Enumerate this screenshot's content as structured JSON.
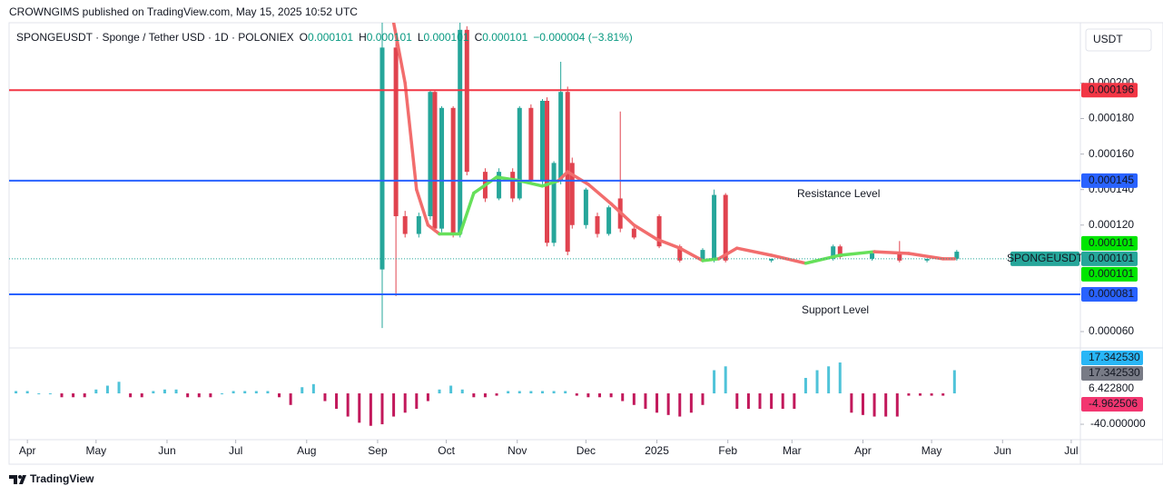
{
  "header": {
    "published": "CROWNGIMS published on TradingView.com, May 15, 2025 10:52 UTC",
    "symbol": "SPONGEUSDT · Sponge / Tether USD · 1D · POLONIEX",
    "o_label": "O",
    "open": 0.000101,
    "h_label": "H",
    "high": 0.000101,
    "l_label": "L",
    "low": 0.000101,
    "c_label": "C",
    "close": 0.000101,
    "change": "−0.000004 (−3.81%)",
    "currency": "USDT"
  },
  "x_axis": {
    "xlim": [
      -8,
      460
    ],
    "xticks": [
      {
        "value": 0,
        "label": "Apr"
      },
      {
        "value": 30,
        "label": "May"
      },
      {
        "value": 61,
        "label": "Jun"
      },
      {
        "value": 91,
        "label": "Jul"
      },
      {
        "value": 122,
        "label": "Aug"
      },
      {
        "value": 153,
        "label": "Sep"
      },
      {
        "value": 183,
        "label": "Oct"
      },
      {
        "value": 214,
        "label": "Nov"
      },
      {
        "value": 244,
        "label": "Dec"
      },
      {
        "value": 275,
        "label": "2025"
      },
      {
        "value": 306,
        "label": "Feb"
      },
      {
        "value": 334,
        "label": "Mar"
      },
      {
        "value": 365,
        "label": "Apr"
      },
      {
        "value": 395,
        "label": "May"
      },
      {
        "value": 426,
        "label": "Jun"
      },
      {
        "value": 456,
        "label": "Jul"
      }
    ]
  },
  "price_pane": {
    "ylim": [
      5.13e-05,
      0.000234
    ],
    "yticks": [
      {
        "value": 0.0002,
        "label": "0.000200"
      },
      {
        "value": 0.00018,
        "label": "0.000180"
      },
      {
        "value": 0.00016,
        "label": "0.000160"
      },
      {
        "value": 0.00014,
        "label": "0.000140"
      },
      {
        "value": 0.00012,
        "label": "0.000120"
      },
      {
        "value": 6e-05,
        "label": "0.000060"
      }
    ],
    "up_color": "#26a69a",
    "down_color": "#e0434f",
    "candles": [
      {
        "x": 155,
        "open": 9.5e-05,
        "high": 0.00024,
        "low": 6.2e-05,
        "close": 0.00022
      },
      {
        "x": 161,
        "open": 0.00022,
        "high": 0.00023,
        "low": 8e-05,
        "close": 0.000125
      },
      {
        "x": 165,
        "open": 0.000125,
        "high": 0.000128,
        "low": 0.000113,
        "close": 0.000115
      },
      {
        "x": 171,
        "open": 0.000115,
        "high": 0.000127,
        "low": 0.000113,
        "close": 0.000125
      },
      {
        "x": 176,
        "open": 0.000125,
        "high": 0.000196,
        "low": 0.000123,
        "close": 0.000195
      },
      {
        "x": 178,
        "open": 0.000195,
        "high": 0.000196,
        "low": 0.000116,
        "close": 0.000118
      },
      {
        "x": 181,
        "open": 0.000118,
        "high": 0.000187,
        "low": 0.000116,
        "close": 0.000186
      },
      {
        "x": 186,
        "open": 0.000186,
        "high": 0.000187,
        "low": 0.000113,
        "close": 0.000115
      },
      {
        "x": 189,
        "open": 0.000115,
        "high": 0.000234,
        "low": 0.000113,
        "close": 0.00023
      },
      {
        "x": 192,
        "open": 0.00023,
        "high": 0.000232,
        "low": 0.000148,
        "close": 0.00015
      },
      {
        "x": 200,
        "open": 0.00015,
        "high": 0.000152,
        "low": 0.000133,
        "close": 0.000135
      },
      {
        "x": 206,
        "open": 0.000135,
        "high": 0.000152,
        "low": 0.000134,
        "close": 0.00015
      },
      {
        "x": 212,
        "open": 0.00015,
        "high": 0.000152,
        "low": 0.000133,
        "close": 0.000135
      },
      {
        "x": 215,
        "open": 0.000135,
        "high": 0.000187,
        "low": 0.000134,
        "close": 0.000186
      },
      {
        "x": 220,
        "open": 0.000186,
        "high": 0.000188,
        "low": 0.000143,
        "close": 0.000145
      },
      {
        "x": 225,
        "open": 0.000145,
        "high": 0.000191,
        "low": 0.000143,
        "close": 0.00019
      },
      {
        "x": 227,
        "open": 0.00019,
        "high": 0.000192,
        "low": 0.000108,
        "close": 0.00011
      },
      {
        "x": 230,
        "open": 0.00011,
        "high": 0.000156,
        "low": 0.000108,
        "close": 0.000155
      },
      {
        "x": 233,
        "open": 0.000145,
        "high": 0.000212,
        "low": 0.000143,
        "close": 0.000195
      },
      {
        "x": 236,
        "open": 0.000195,
        "high": 0.000198,
        "low": 0.000103,
        "close": 0.000105
      },
      {
        "x": 238,
        "open": 0.000155,
        "high": 0.000158,
        "low": 0.000118,
        "close": 0.00012
      },
      {
        "x": 244,
        "open": 0.00012,
        "high": 0.000141,
        "low": 0.000118,
        "close": 0.00014
      },
      {
        "x": 249,
        "open": 0.000125,
        "high": 0.000127,
        "low": 0.000113,
        "close": 0.000115
      },
      {
        "x": 254,
        "open": 0.000115,
        "high": 0.000131,
        "low": 0.000114,
        "close": 0.00013
      },
      {
        "x": 259,
        "open": 0.000135,
        "high": 0.000184,
        "low": 0.000116,
        "close": 0.000118
      },
      {
        "x": 265,
        "open": 0.000118,
        "high": 0.00012,
        "low": 0.000112,
        "close": 0.000113
      },
      {
        "x": 276,
        "open": 0.000125,
        "high": 0.000126,
        "low": 0.000107,
        "close": 0.000108
      },
      {
        "x": 285,
        "open": 0.000108,
        "high": 0.000109,
        "low": 9.9e-05,
        "close": 0.0001
      },
      {
        "x": 295,
        "open": 0.0001,
        "high": 0.000107,
        "low": 9.9e-05,
        "close": 0.000106
      },
      {
        "x": 300,
        "open": 0.0001,
        "high": 0.00014,
        "low": 9.9e-05,
        "close": 0.000137
      },
      {
        "x": 305,
        "open": 0.000137,
        "high": 0.000138,
        "low": 9.9e-05,
        "close": 0.0001
      },
      {
        "x": 325,
        "open": 0.0001,
        "high": 0.000101,
        "low": 9.9e-05,
        "close": 0.000101
      },
      {
        "x": 352,
        "open": 0.000101,
        "high": 0.000109,
        "low": 0.0001,
        "close": 0.000108
      },
      {
        "x": 355,
        "open": 0.000108,
        "high": 0.000109,
        "low": 0.000101,
        "close": 0.000102
      },
      {
        "x": 369,
        "open": 0.000101,
        "high": 0.000105,
        "low": 0.0001,
        "close": 0.000104
      },
      {
        "x": 381,
        "open": 0.000105,
        "high": 0.000111,
        "low": 9.9e-05,
        "close": 0.0001
      },
      {
        "x": 393,
        "open": 0.0001,
        "high": 0.000101,
        "low": 9.9e-05,
        "close": 0.000101
      },
      {
        "x": 406,
        "open": 0.000101,
        "high": 0.000106,
        "low": 0.0001,
        "close": 0.000105
      }
    ],
    "average": {
      "x": [
        160,
        165,
        170,
        175,
        180,
        189,
        195,
        205,
        215,
        225,
        232,
        236,
        245,
        255,
        265,
        275,
        285,
        295,
        302,
        310,
        325,
        340,
        355,
        370,
        385,
        400,
        405
      ],
      "values": [
        0.000234,
        0.0002,
        0.00014,
        0.00012,
        0.000115,
        0.000115,
        0.000138,
        0.000147,
        0.000145,
        0.000142,
        0.000145,
        0.00015,
        0.000143,
        0.000132,
        0.00012,
        0.000112,
        0.000107,
        0.0001,
        0.000101,
        0.000107,
        0.000103,
        9.85e-05,
        0.000103,
        0.000105,
        0.000104,
        0.000101,
        0.000101
      ],
      "colors": [
        "#f26d6d",
        "#f26d6d",
        "#f26d6d",
        "#f26d6d",
        "#66e05a",
        "#66e05a",
        "#66e05a",
        "#66e05a",
        "#66e05a",
        "#66e05a",
        "#f26d6d",
        "#f26d6d",
        "#f26d6d",
        "#f26d6d",
        "#f26d6d",
        "#f26d6d",
        "#f26d6d",
        "#66e05a",
        "#f26d6d",
        "#f26d6d",
        "#f26d6d",
        "#66e05a",
        "#66e05a",
        "#f26d6d",
        "#f26d6d",
        "#f26d6d",
        "#f26d6d"
      ]
    },
    "levels": [
      {
        "value": 0.000196,
        "color": "#f23645"
      },
      {
        "value": 0.000145,
        "color": "#2962ff"
      },
      {
        "value": 8.1e-05,
        "color": "#2962ff"
      }
    ],
    "last_price": 0.000101,
    "symbol_badge": "SPONGEUSDT",
    "side_badges": [
      {
        "value": 0.000101,
        "color": "#00e600"
      },
      {
        "value": 0.000101,
        "color": "#00e600"
      }
    ],
    "resistance_text": "Resistance Level",
    "support_text": "Support Level"
  },
  "indicator": {
    "ylim": [
      -57.6,
      56.5
    ],
    "yticks": [
      {
        "value": -40,
        "label": "-40.000000"
      }
    ],
    "up_color": "#4fc3d9",
    "down_color": "#c2185b",
    "badges": [
      {
        "label": "17.342530",
        "color": "#29b6f6"
      },
      {
        "label": "17.342530",
        "color": "#787b86"
      },
      {
        "label": "6.422800",
        "color": null
      },
      {
        "label": "-4.962506",
        "color": "#f23670"
      }
    ],
    "x": [
      -5,
      0,
      5,
      10,
      15,
      20,
      25,
      30,
      35,
      40,
      45,
      50,
      55,
      60,
      65,
      70,
      75,
      80,
      85,
      90,
      95,
      100,
      105,
      110,
      115,
      120,
      125,
      130,
      135,
      140,
      145,
      150,
      155,
      160,
      165,
      170,
      175,
      180,
      185,
      190,
      195,
      200,
      205,
      210,
      215,
      220,
      225,
      230,
      235,
      240,
      245,
      250,
      255,
      260,
      265,
      270,
      275,
      280,
      285,
      290,
      295,
      300,
      305,
      310,
      315,
      320,
      325,
      330,
      335,
      340,
      345,
      350,
      355,
      360,
      365,
      370,
      375,
      380,
      385,
      390,
      395,
      400,
      405
    ],
    "values": [
      3,
      3,
      0,
      0,
      -5,
      -5,
      -5,
      5,
      10,
      15,
      -5,
      -5,
      3,
      5,
      5,
      -5,
      -5,
      -5,
      0,
      3,
      3,
      3,
      3,
      -5,
      -15,
      8,
      12,
      -10,
      -20,
      -30,
      -38,
      -42,
      -40,
      -30,
      -25,
      -20,
      -10,
      5,
      10,
      5,
      -5,
      -5,
      -3,
      3,
      3,
      3,
      3,
      3,
      3,
      -3,
      -5,
      -5,
      -5,
      -10,
      -15,
      -20,
      -25,
      -28,
      -30,
      -25,
      -15,
      30,
      35,
      -20,
      -20,
      -20,
      -20,
      -20,
      -20,
      20,
      30,
      35,
      40,
      -25,
      -28,
      -30,
      -30,
      -30,
      -3,
      -3,
      -3,
      -3,
      30
    ]
  },
  "footer": {
    "brand": "TradingView"
  }
}
